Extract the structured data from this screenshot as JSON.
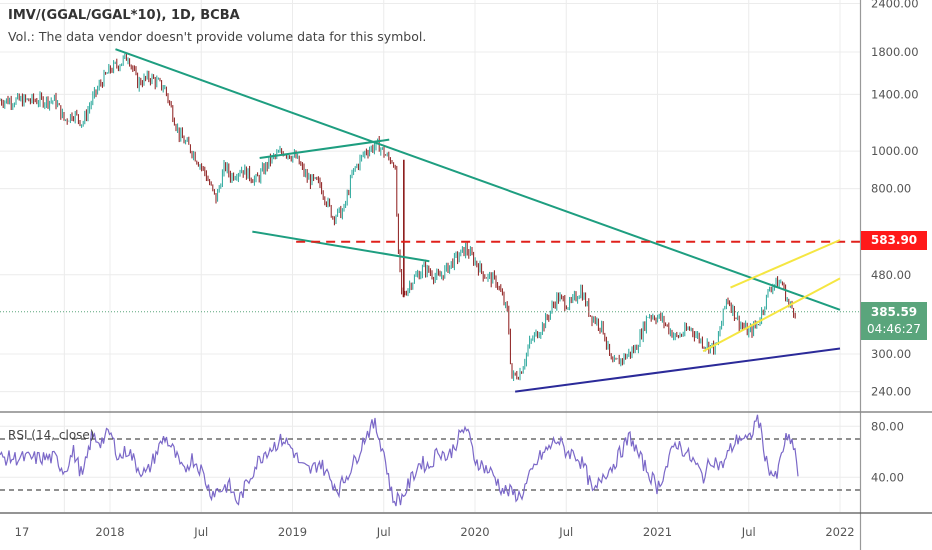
{
  "header": {
    "title": "IMV/(GGAL/GGAL*10), 1D, BCBA",
    "volume_note": "Vol.: The data vendor doesn't provide volume data for this symbol."
  },
  "price_tags": {
    "level_price": "583.90",
    "last_price": "385.59",
    "countdown": "04:46:27"
  },
  "colors": {
    "up_candle": "#26a69a",
    "down_candle": "#8b1a1a",
    "trendline": "#1e9e80",
    "support_line": "#2b2a99",
    "channel": "#f5e642",
    "level_line": "#e0201b",
    "rsi_line": "#7b68c8",
    "last_price_tag": "#5aa57c",
    "level_tag": "#ff1a1a"
  },
  "chart_data": [
    {
      "type": "line",
      "name": "price",
      "title": "IMV/(GGAL/GGAL*10), 1D, BCBA",
      "scale": "log",
      "ylim": [
        220,
        2500
      ],
      "y_ticks": [
        "2400.00",
        "1800.00",
        "1400.00",
        "1000.00",
        "800.00",
        "480.00",
        "300.00",
        "240.00"
      ],
      "y_tick_values": [
        2400,
        1800,
        1400,
        1000,
        800,
        480,
        300,
        240
      ],
      "x_ticks": [
        "17",
        "2018",
        "Jul",
        "2019",
        "Jul",
        "2020",
        "Jul",
        "2021",
        "Jul",
        "2022"
      ],
      "x_tick_dates": [
        2017.75,
        2018.0,
        2018.5,
        2019.0,
        2019.5,
        2020.0,
        2020.5,
        2021.0,
        2021.5,
        2022.0
      ],
      "grid": true,
      "series": [
        {
          "name": "close (approx.)",
          "x": [
            2017.7,
            2017.75,
            2017.8,
            2017.85,
            2017.9,
            2017.95,
            2018.0,
            2018.05,
            2018.1,
            2018.15,
            2018.22,
            2018.3,
            2018.38,
            2018.45,
            2018.52,
            2018.58,
            2018.63,
            2018.66,
            2018.72,
            2018.8,
            2018.88,
            2018.95,
            2019.02,
            2019.08,
            2019.15,
            2019.22,
            2019.28,
            2019.33,
            2019.4,
            2019.47,
            2019.52,
            2019.56,
            2019.58,
            2019.6,
            2019.65,
            2019.72,
            2019.8,
            2019.88,
            2019.95,
            2020.0,
            2020.05,
            2020.12,
            2020.18,
            2020.2,
            2020.25,
            2020.3,
            2020.38,
            2020.45,
            2020.52,
            2020.58,
            2020.63,
            2020.7,
            2020.75,
            2020.8,
            2020.88,
            2020.95,
            2021.02,
            2021.1,
            2021.18,
            2021.25,
            2021.32,
            2021.38,
            2021.45,
            2021.5,
            2021.55,
            2021.62,
            2021.68,
            2021.72,
            2021.76
          ],
          "values": [
            1350,
            1200,
            1250,
            1180,
            1350,
            1500,
            1620,
            1680,
            1760,
            1500,
            1550,
            1450,
            1100,
            1000,
            880,
            750,
            920,
            860,
            900,
            840,
            950,
            1000,
            960,
            850,
            820,
            680,
            700,
            880,
            1000,
            1040,
            960,
            940,
            540,
            420,
            460,
            500,
            470,
            520,
            560,
            520,
            480,
            460,
            380,
            260,
            270,
            320,
            360,
            420,
            400,
            440,
            380,
            350,
            280,
            290,
            310,
            380,
            370,
            330,
            350,
            320,
            310,
            420,
            360,
            340,
            360,
            450,
            460,
            400,
            386
          ]
        }
      ],
      "drawings": [
        {
          "type": "trendline",
          "name": "descending resistance",
          "from": [
            2018.03,
            1830
          ],
          "to": [
            2022.0,
            390
          ]
        },
        {
          "type": "trendline",
          "name": "triangle upper",
          "from": [
            2018.82,
            960
          ],
          "to": [
            2019.53,
            1070
          ]
        },
        {
          "type": "trendline",
          "name": "triangle lower",
          "from": [
            2018.78,
            620
          ],
          "to": [
            2019.75,
            520
          ]
        },
        {
          "type": "horizontal",
          "name": "level 583.90",
          "value": 583.9
        },
        {
          "type": "trendline",
          "name": "ascending support",
          "from": [
            2020.22,
            240
          ],
          "to": [
            2022.0,
            310
          ]
        },
        {
          "type": "parallel_channel",
          "name": "rising channel upper",
          "from": [
            2021.4,
            445
          ],
          "to": [
            2022.0,
            590
          ]
        },
        {
          "type": "parallel_channel",
          "name": "rising channel lower",
          "from": [
            2021.25,
            305
          ],
          "to": [
            2022.0,
            470
          ]
        }
      ]
    },
    {
      "type": "line",
      "name": "rsi",
      "title": "RSI (14, close)",
      "ylim": [
        10,
        95
      ],
      "y_ticks": [
        "80.00",
        "40.00"
      ],
      "y_tick_values": [
        80,
        40
      ],
      "bands": [
        70,
        30
      ],
      "series": [
        {
          "name": "RSI (14, close)",
          "x": [
            2017.7,
            2017.75,
            2017.8,
            2017.85,
            2017.9,
            2017.95,
            2018.0,
            2018.05,
            2018.1,
            2018.15,
            2018.2,
            2018.25,
            2018.3,
            2018.35,
            2018.4,
            2018.45,
            2018.5,
            2018.55,
            2018.6,
            2018.65,
            2018.7,
            2018.75,
            2018.8,
            2018.85,
            2018.9,
            2018.95,
            2019.0,
            2019.05,
            2019.1,
            2019.15,
            2019.2,
            2019.25,
            2019.3,
            2019.35,
            2019.4,
            2019.45,
            2019.5,
            2019.55,
            2019.6,
            2019.65,
            2019.7,
            2019.75,
            2019.8,
            2019.85,
            2019.9,
            2019.95,
            2020.0,
            2020.05,
            2020.1,
            2020.15,
            2020.2,
            2020.25,
            2020.3,
            2020.35,
            2020.4,
            2020.45,
            2020.5,
            2020.55,
            2020.6,
            2020.65,
            2020.7,
            2020.75,
            2020.8,
            2020.85,
            2020.9,
            2020.95,
            2021.0,
            2021.05,
            2021.1,
            2021.15,
            2021.2,
            2021.25,
            2021.3,
            2021.35,
            2021.4,
            2021.45,
            2021.5,
            2021.55,
            2021.6,
            2021.65,
            2021.7,
            2021.75,
            2021.77
          ],
          "values": [
            55,
            45,
            60,
            40,
            72,
            68,
            75,
            55,
            62,
            48,
            42,
            58,
            72,
            60,
            44,
            55,
            46,
            28,
            30,
            34,
            20,
            35,
            50,
            60,
            65,
            70,
            62,
            48,
            45,
            52,
            40,
            30,
            42,
            55,
            73,
            82,
            60,
            22,
            24,
            38,
            52,
            48,
            62,
            55,
            68,
            80,
            54,
            48,
            42,
            30,
            28,
            25,
            40,
            55,
            62,
            70,
            60,
            58,
            48,
            26,
            42,
            48,
            60,
            72,
            56,
            44,
            32,
            48,
            68,
            60,
            52,
            40,
            55,
            48,
            62,
            72,
            68,
            88,
            50,
            38,
            70,
            65,
            42
          ]
        }
      ]
    }
  ],
  "rsi_legend": "RSI (14, close)"
}
